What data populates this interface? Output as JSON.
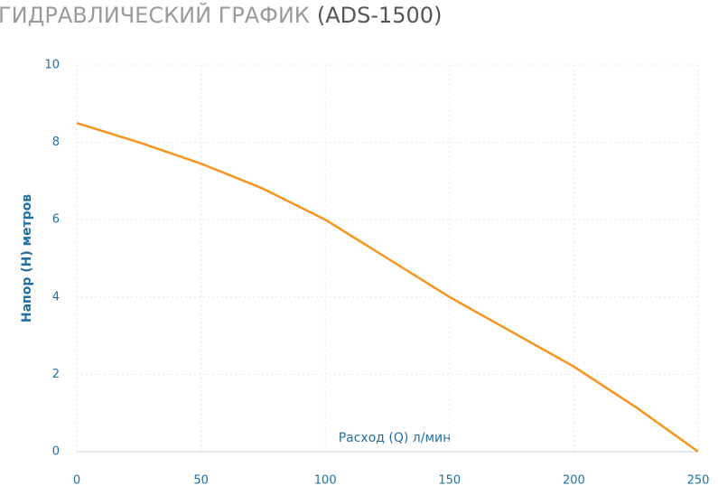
{
  "chart_data": {
    "type": "line",
    "title": "ГИДРАВЛИЧЕСКИЙ ГРАФИК",
    "model": "(ADS-1500)",
    "x_label": "Расход (Q) л/мин",
    "y_label": "Напор (H) метров",
    "x": [
      0,
      25,
      50,
      75,
      100,
      125,
      150,
      175,
      200,
      225,
      250
    ],
    "series": [
      {
        "color": "#f7941d",
        "values": [
          8.5,
          8.0,
          7.45,
          6.8,
          6.0,
          5.0,
          4.0,
          3.1,
          2.2,
          1.15,
          0
        ]
      }
    ],
    "xlim": [
      0,
      250
    ],
    "xticks": [
      0,
      50,
      100,
      150,
      200,
      250
    ],
    "ylim": [
      0,
      10
    ],
    "yticks": [
      0,
      2,
      4,
      6,
      8,
      10
    ],
    "grid": true
  }
}
